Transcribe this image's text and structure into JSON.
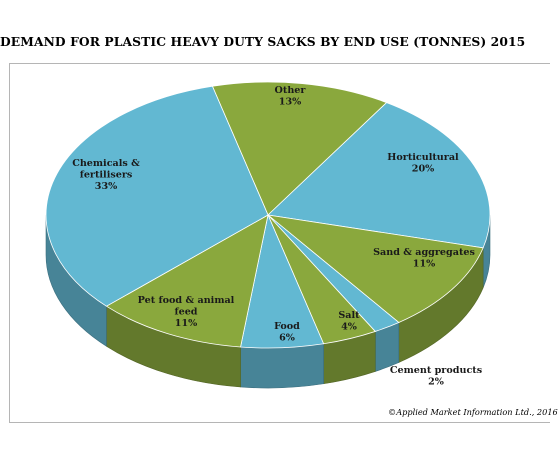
{
  "chart_data": {
    "type": "pie",
    "title": "DEMAND FOR PLASTIC HEAVY DUTY SACKS BY END USE (TONNES) 2015",
    "slices": [
      {
        "name": "Other",
        "value": 13,
        "label": "13%",
        "color": "#8aa83d"
      },
      {
        "name": "Horticultural",
        "value": 20,
        "label": "20%",
        "color": "#62b8d2"
      },
      {
        "name": "Sand & aggregates",
        "value": 11,
        "label": "11%",
        "color": "#8aa83d"
      },
      {
        "name": "Cement products",
        "value": 2,
        "label": "2%",
        "color": "#62b8d2"
      },
      {
        "name": "Salt",
        "value": 4,
        "label": "4%",
        "color": "#8aa83d"
      },
      {
        "name": "Food",
        "value": 6,
        "label": "6%",
        "color": "#62b8d2"
      },
      {
        "name": "Pet food & animal feed",
        "value": 11,
        "label": "11%",
        "color": "#8aa83d"
      },
      {
        "name": "Chemicals & fertilisers",
        "value": 33,
        "label": "33%",
        "color": "#62b8d2"
      }
    ],
    "copyright": "©Applied Market Information Ltd., 2016"
  }
}
